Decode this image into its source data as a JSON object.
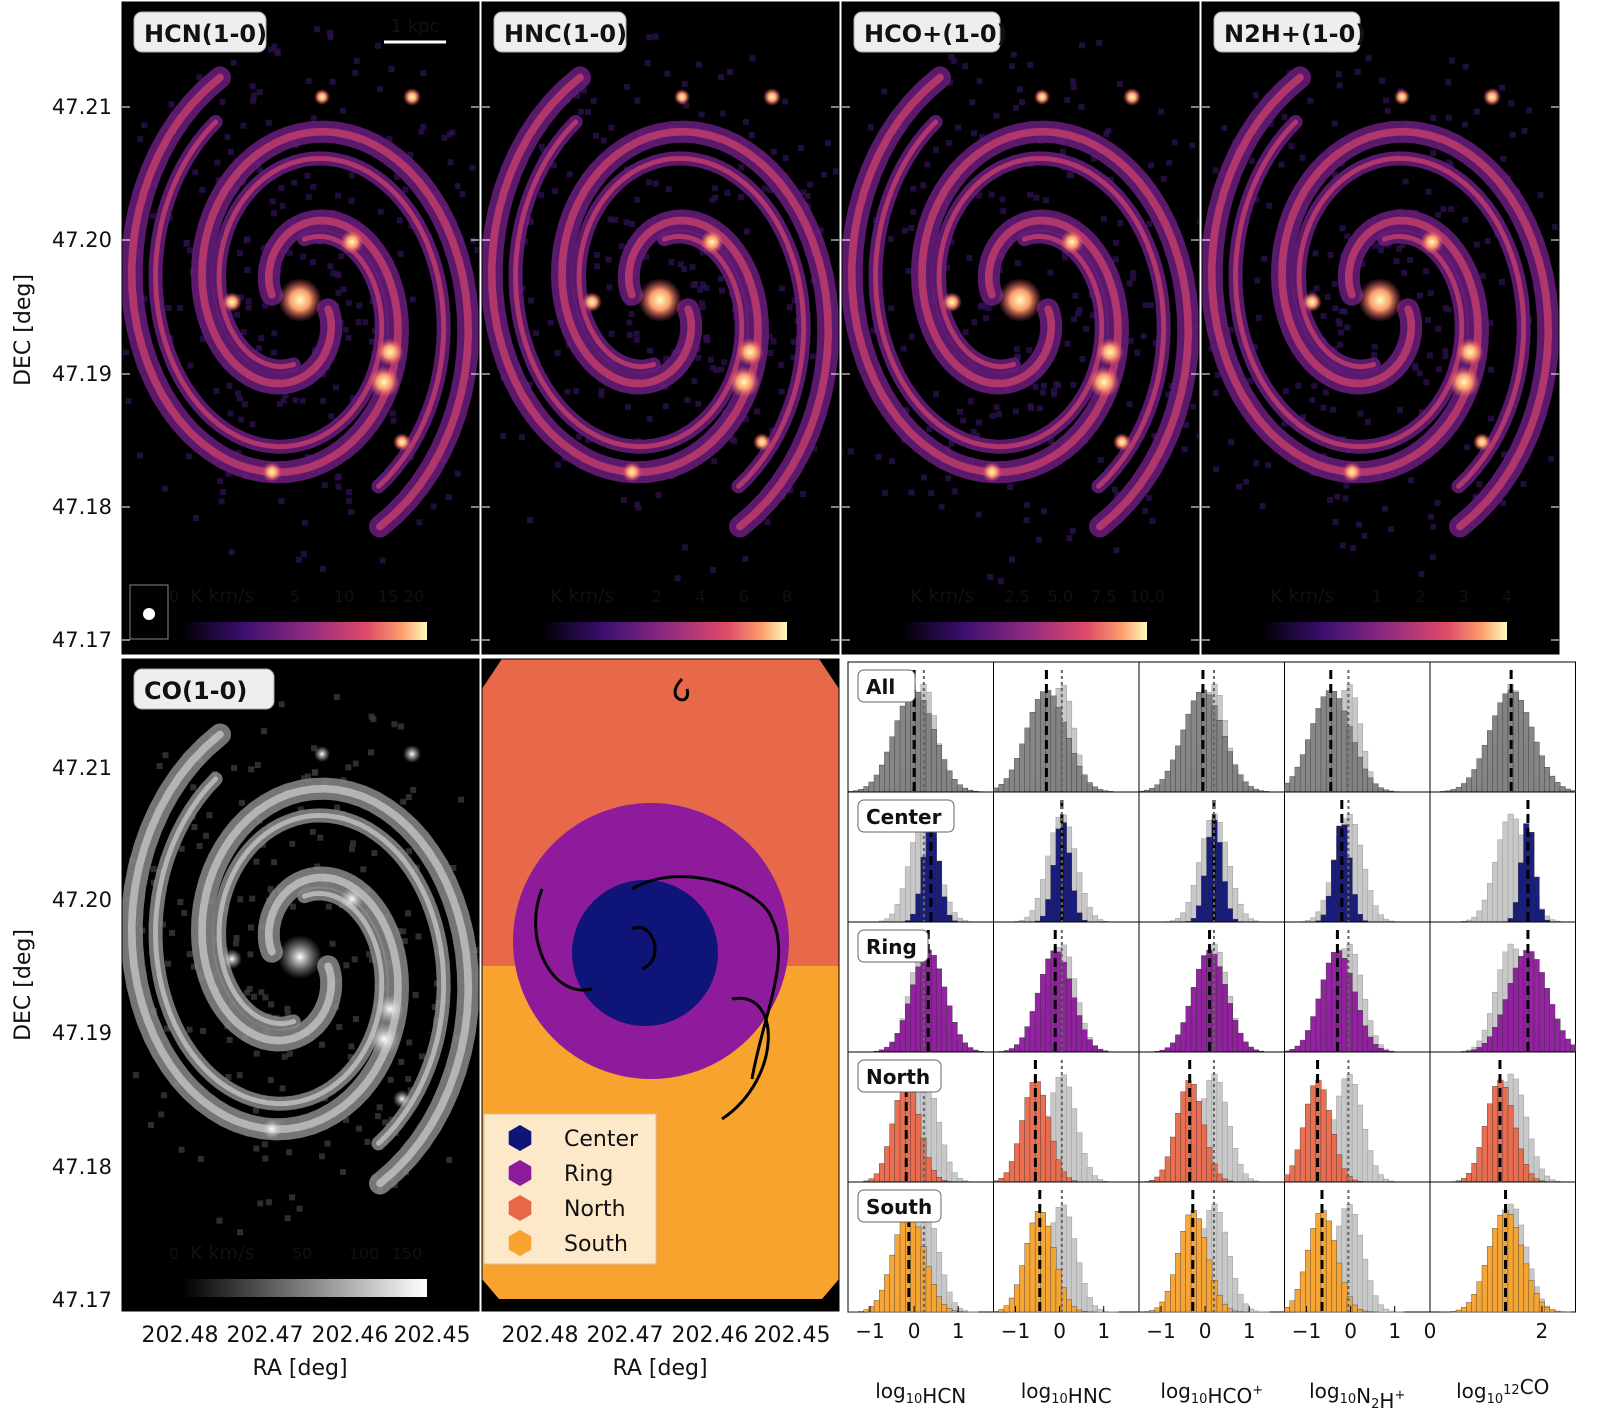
{
  "chart_data": [
    {
      "type": "heatmap",
      "panel": "map",
      "label": "HCN(1-0)",
      "colormap": "magma",
      "colorbar_unit": "K km/s",
      "colorbar_ticks": [
        "0",
        "5",
        "10",
        "15",
        "20"
      ],
      "scalebar": "1 kpc",
      "ylabel": "DEC [deg]",
      "yticks": [
        "47.21",
        "47.20",
        "47.19",
        "47.18",
        "47.17"
      ],
      "ylim": [
        47.1685,
        47.2175
      ],
      "xlim": [
        202.486,
        202.445
      ]
    },
    {
      "type": "heatmap",
      "panel": "map",
      "label": "HNC(1-0)",
      "colormap": "magma",
      "colorbar_unit": "K km/s",
      "colorbar_ticks": [
        "2",
        "4",
        "6",
        "8"
      ]
    },
    {
      "type": "heatmap",
      "panel": "map",
      "label": "HCO+(1-0)",
      "colormap": "magma",
      "colorbar_unit": "K km/s",
      "colorbar_ticks": [
        "2.5",
        "5.0",
        "7.5",
        "10.0"
      ]
    },
    {
      "type": "heatmap",
      "panel": "map",
      "label": "N2H+(1-0)",
      "colormap": "magma",
      "colorbar_unit": "K km/s",
      "colorbar_ticks": [
        "1",
        "2",
        "3",
        "4"
      ]
    },
    {
      "type": "heatmap",
      "panel": "map",
      "label": "CO(1-0)",
      "colormap": "gray",
      "colorbar_unit": "K km/s",
      "colorbar_ticks": [
        "0",
        "50",
        "100",
        "150"
      ],
      "xlabel": "RA [deg]",
      "ylabel": "DEC [deg]",
      "xticks": [
        "202.48",
        "202.47",
        "202.46",
        "202.45"
      ],
      "yticks": [
        "47.21",
        "47.20",
        "47.19",
        "47.18",
        "47.17"
      ]
    },
    {
      "type": "heatmap",
      "panel": "regions",
      "xlabel": "RA [deg]",
      "xticks": [
        "202.48",
        "202.47",
        "202.46",
        "202.45"
      ],
      "legend": [
        {
          "name": "Center",
          "color": "#0f1479"
        },
        {
          "name": "Ring",
          "color": "#8e1a9c"
        },
        {
          "name": "North",
          "color": "#e8694a"
        },
        {
          "name": "South",
          "color": "#f7a32e"
        }
      ]
    },
    {
      "type": "bar",
      "panel": "histograms",
      "rows": [
        {
          "label": "All",
          "color": "#808080"
        },
        {
          "label": "Center",
          "color": "#0f1479"
        },
        {
          "label": "Ring",
          "color": "#8e1a9c"
        },
        {
          "label": "North",
          "color": "#e8694a"
        },
        {
          "label": "South",
          "color": "#f7a32e"
        }
      ],
      "columns": [
        {
          "xlabel": "log10HCN",
          "xticks": [
            "−1",
            "0",
            "1"
          ],
          "xlim": [
            -1.5,
            1.8
          ],
          "medians": [
            0.0,
            0.38,
            0.32,
            -0.18,
            -0.12
          ],
          "all_median": 0.22,
          "stds": [
            0.45,
            0.18,
            0.38,
            0.3,
            0.35
          ]
        },
        {
          "xlabel": "log10HNC",
          "xticks": [
            "−1",
            "0",
            "1"
          ],
          "xlim": [
            -1.5,
            1.8
          ],
          "medians": [
            -0.3,
            0.05,
            -0.1,
            -0.55,
            -0.45
          ],
          "all_median": 0.05,
          "stds": [
            0.45,
            0.18,
            0.38,
            0.3,
            0.32
          ]
        },
        {
          "xlabel": "log10HCO+",
          "xticks": [
            "−1",
            "0",
            "1"
          ],
          "xlim": [
            -1.5,
            1.8
          ],
          "medians": [
            -0.05,
            0.2,
            0.1,
            -0.35,
            -0.28
          ],
          "all_median": 0.2,
          "stds": [
            0.45,
            0.18,
            0.38,
            0.3,
            0.32
          ]
        },
        {
          "xlabel": "log10N2H+",
          "xticks": [
            "−1",
            "0",
            "1"
          ],
          "xlim": [
            -1.5,
            1.8
          ],
          "medians": [
            -0.45,
            -0.2,
            -0.3,
            -0.75,
            -0.65
          ],
          "all_median": -0.05,
          "stds": [
            0.45,
            0.18,
            0.38,
            0.3,
            0.32
          ]
        },
        {
          "xlabel": "log1012CO",
          "xticks": [
            "0",
            "2"
          ],
          "xlim": [
            0,
            2.6
          ],
          "medians": [
            1.45,
            1.75,
            1.75,
            1.25,
            1.35
          ],
          "all_median": 1.45,
          "stds": [
            0.38,
            0.12,
            0.35,
            0.25,
            0.3
          ]
        }
      ]
    }
  ]
}
